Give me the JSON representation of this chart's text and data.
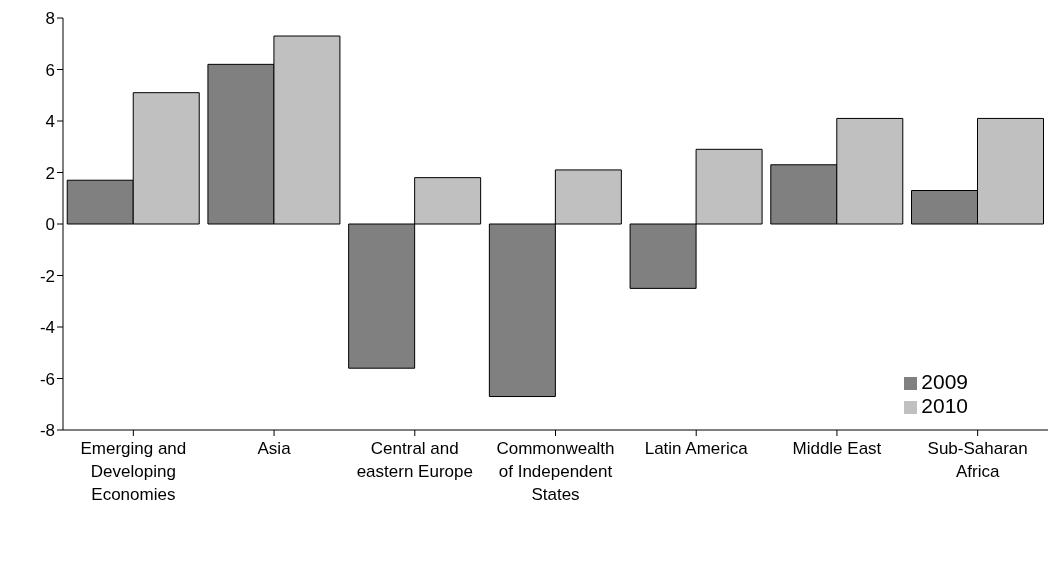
{
  "chart_data": {
    "type": "bar",
    "categories": [
      "Emerging and Developing Economies",
      "Asia",
      "Central and eastern Europe",
      "Commonwealth of Independent States",
      "Latin America",
      "Middle East",
      "Sub-Saharan Africa"
    ],
    "series": [
      {
        "name": "2009",
        "color": "#808080",
        "values": [
          1.7,
          6.2,
          -5.6,
          -6.7,
          -2.5,
          2.3,
          1.3
        ]
      },
      {
        "name": "2010",
        "color": "#c0c0c0",
        "values": [
          5.1,
          7.3,
          1.8,
          2.1,
          2.9,
          4.1,
          4.1
        ]
      }
    ],
    "ylim": [
      -8,
      8
    ],
    "yticks": [
      -8,
      -6,
      -4,
      -2,
      0,
      2,
      4,
      6,
      8
    ],
    "legend": "bottom right"
  }
}
